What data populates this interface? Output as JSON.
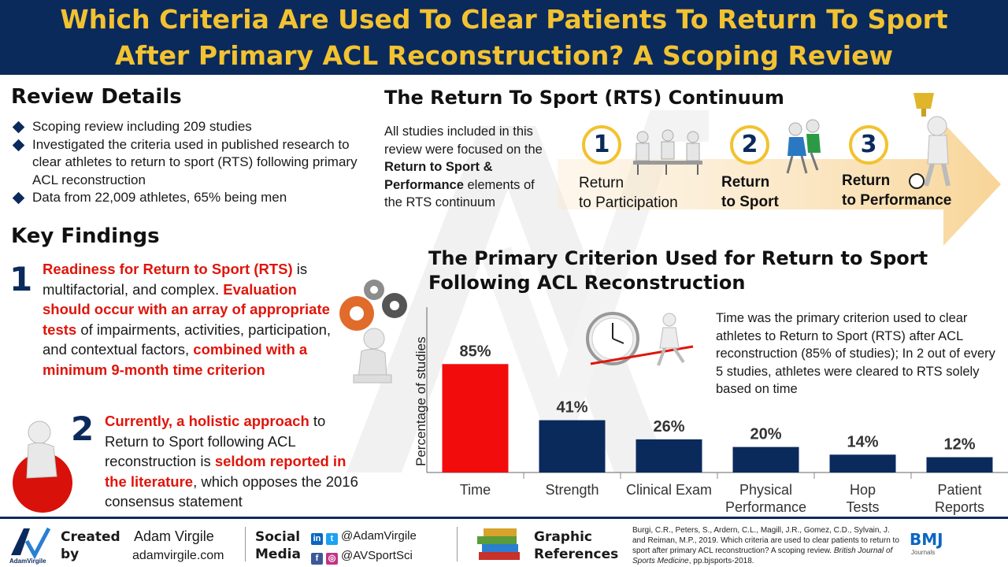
{
  "header": {
    "title_line1": "Which Criteria Are Used To Clear Patients To Return To Sport",
    "title_line2": "After Primary ACL Reconstruction? A Scoping Review"
  },
  "review": {
    "heading": "Review Details",
    "items": [
      "Scoping review including 209 studies",
      "Investigated the criteria used in published research to clear athletes to return to sport (RTS) following primary ACL reconstruction",
      "Data from 22,009 athletes, 65% being men"
    ]
  },
  "findings": {
    "heading": "Key Findings",
    "f1": {
      "number": "1",
      "p1_red": "Readiness for Return to Sport (RTS)",
      "p2": " is multifactorial, and complex. ",
      "p3_red": "Evaluation should occur with an array of appropriate tests",
      "p4": " of impairments, activities, participation, and contextual factors, ",
      "p5_red": "combined with a minimum 9-month time criterion"
    },
    "f2": {
      "number": "2",
      "p1_red": "Currently, a holistic approach",
      "p2": " to Return to Sport following ACL reconstruction is ",
      "p3_red": "seldom reported in the literature",
      "p4": ", which opposes the 2016 consensus statement"
    }
  },
  "continuum": {
    "heading": "The Return To Sport (RTS) Continuum",
    "desc_a": "All studies included in this review were focused on the ",
    "desc_b": "Return to Sport & Performance",
    "desc_c": " elements of the RTS continuum",
    "steps": [
      {
        "num": "1",
        "line1": "Return",
        "line2": "to Participation"
      },
      {
        "num": "2",
        "line1": "Return",
        "line2": "to Sport"
      },
      {
        "num": "3",
        "line1": "Return",
        "line2": "to Performance"
      }
    ]
  },
  "chart_note": "Time was the primary criterion used to clear athletes to Return to Sport (RTS) after ACL reconstruction (85% of studies); In 2 out of every 5 studies, athletes were cleared to RTS solely based on time",
  "chart_data": {
    "type": "bar",
    "title": "The Primary Criterion Used for Return to Sport Following ACL Reconstruction",
    "ylabel": "Percentage of studies",
    "xlabel": "",
    "categories": [
      "Time",
      "Strength",
      "Clinical Exam",
      "Physical Performance",
      "Hop Tests",
      "Patient Reports"
    ],
    "values": [
      85,
      41,
      26,
      20,
      14,
      12
    ],
    "data_labels": [
      "85%",
      "41%",
      "26%",
      "20%",
      "14%",
      "12%"
    ],
    "ylim": [
      0,
      100
    ],
    "grid": false,
    "colors": {
      "highlight": "#f20c0c",
      "default": "#0b2a5c"
    }
  },
  "footer": {
    "created_label": "Created by",
    "author": "Adam Virgile",
    "site": "adamvirgile.com",
    "social_label": "Social Media",
    "handle1": "@AdamVirgile",
    "handle2": "@AVSportSci",
    "graphic_label": "Graphic References",
    "reference_a": "Burgi, C.R., Peters, S., Ardern, C.L., Magill, J.R., Gomez, C.D., Sylvain, J. and Reiman, M.P., 2019. Which criteria are used to clear patients to return to sport after primary ACL reconstruction? A scoping review. ",
    "reference_journal": "British Journal of Sports Medicine",
    "reference_b": ", pp.bjsports-2018.",
    "logo_text": "AdamVirgile",
    "bmj": "BMJ",
    "bmj_sub": "Journals"
  },
  "colors": {
    "navy": "#0b2a5c",
    "gold": "#f2c230",
    "red": "#e0150b"
  }
}
